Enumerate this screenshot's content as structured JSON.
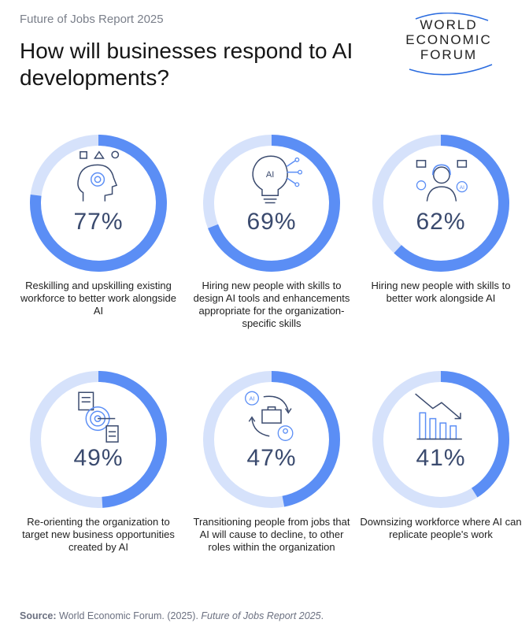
{
  "header": {
    "report_label": "Future of Jobs Report 2025",
    "title": "How will businesses respond to AI developments?"
  },
  "logo": {
    "lines": [
      "WORLD",
      "ECONOMIC",
      "FORUM"
    ]
  },
  "colors": {
    "ring_fill": "#5b8ef5",
    "ring_track": "#d6e2fb",
    "icon_stroke": "#3a4a6e",
    "icon_accent": "#5b8ef5"
  },
  "chart_data": {
    "type": "pie",
    "unit": "%",
    "items": [
      {
        "value": 77,
        "label": "77%",
        "icon": "head-gear-icon",
        "description": "Reskilling and upskilling existing workforce to better work alongside AI"
      },
      {
        "value": 69,
        "label": "69%",
        "icon": "ai-lightbulb-icon",
        "description": "Hiring new people with skills to design AI tools and enhancements appropriate for the organization-specific skills"
      },
      {
        "value": 62,
        "label": "62%",
        "icon": "person-tools-icon",
        "description": "Hiring new people with skills to better work alongside AI"
      },
      {
        "value": 49,
        "label": "49%",
        "icon": "target-documents-icon",
        "description": "Re-orienting the organization to target new business opportunities created by AI"
      },
      {
        "value": 47,
        "label": "47%",
        "icon": "transition-cycle-icon",
        "description": "Transitioning people from jobs that AI will cause to decline, to other roles within the organization"
      },
      {
        "value": 41,
        "label": "41%",
        "icon": "declining-bars-icon",
        "description": "Downsizing workforce where AI can replicate people's work"
      }
    ]
  },
  "source": {
    "label": "Source:",
    "text": "World Economic Forum. (2025). ",
    "publication": "Future of Jobs Report 2025",
    "end": "."
  }
}
